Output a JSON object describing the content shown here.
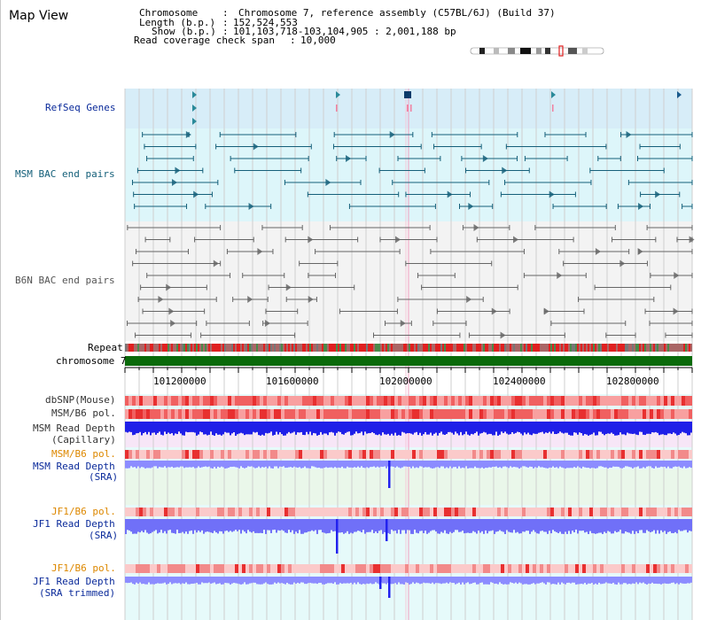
{
  "header": {
    "title": "Map View",
    "chromosome_label": "Chromosome",
    "chromosome_value": "Chromosome 7, reference assembly (C57BL/6J) (Build 37)",
    "length_label": "Length (b.p.)",
    "length_value": "152,524,553",
    "show_label": "Show (b.p.)",
    "show_value": "101,103,718-103,104,905 : 2,001,188 bp",
    "coverage_label": "Read coverage check span",
    "coverage_value": "10,000"
  },
  "tracks": {
    "refseq": "RefSeq Genes",
    "msm_bac": "MSM BAC end pairs",
    "b6n_bac": "B6N BAC end pairs",
    "repeat": "Repeat",
    "chromosome": "chromosome 7",
    "dbsnp": "dbSNP(Mouse)",
    "msm_b6_pol_1": "MSM/B6 pol.",
    "msm_depth_cap_1": "MSM Read Depth",
    "msm_depth_cap_2": "(Capillary)",
    "msm_b6_pol_2": "MSM/B6 pol.",
    "msm_depth_sra_1": "MSM Read Depth",
    "msm_depth_sra_2": "(SRA)",
    "jf1_b6_pol_1": "JF1/B6 pol.",
    "jf1_depth_sra_1": "JF1 Read Depth",
    "jf1_depth_sra_2": "(SRA)",
    "jf1_b6_pol_2": "JF1/B6 pol.",
    "jf1_depth_trim_1": "JF1 Read Depth",
    "jf1_depth_trim_2": "(SRA trimmed)"
  },
  "ruler": {
    "ticks": [
      "101200000",
      "101600000",
      "102000000",
      "102400000",
      "102800000"
    ]
  },
  "colors": {
    "refseq_bg": "#d9eef9",
    "msm_bg": "#dff7fb",
    "b6n_bg": "#f4f4f4",
    "gene_blue": "#1a5a8c",
    "msm_teal": "#15607a",
    "b6n_gray": "#666666",
    "repeat_red": "#dd2020",
    "chromosome_green": "#0a6a0a",
    "depth_blue": "#2222ee",
    "depth_light": "#8888ff",
    "label_blue": "#0a2a9a",
    "label_orange": "#dd8800"
  }
}
